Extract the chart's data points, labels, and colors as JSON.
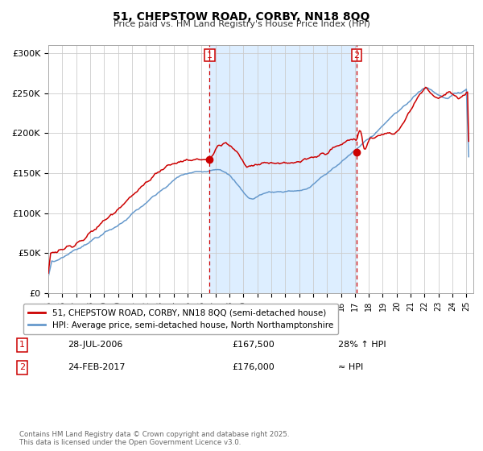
{
  "title": "51, CHEPSTOW ROAD, CORBY, NN18 8QQ",
  "subtitle": "Price paid vs. HM Land Registry's House Price Index (HPI)",
  "legend_red": "51, CHEPSTOW ROAD, CORBY, NN18 8QQ (semi-detached house)",
  "legend_blue": "HPI: Average price, semi-detached house, North Northamptonshire",
  "footer": "Contains HM Land Registry data © Crown copyright and database right 2025.\nThis data is licensed under the Open Government Licence v3.0.",
  "ylim": [
    0,
    310000
  ],
  "yticks": [
    0,
    50000,
    100000,
    150000,
    200000,
    250000,
    300000
  ],
  "ytick_labels": [
    "£0",
    "£50K",
    "£100K",
    "£150K",
    "£200K",
    "£250K",
    "£300K"
  ],
  "red_color": "#cc0000",
  "blue_color": "#6699cc",
  "shade_color": "#ddeeff",
  "vline_color": "#cc0000",
  "background_color": "#ffffff",
  "grid_color": "#cccccc",
  "sale1_x": 2006.57,
  "sale2_x": 2017.12,
  "sale1_y": 167500,
  "sale2_y": 176000,
  "xlim_left": 1995.0,
  "xlim_right": 2025.5
}
